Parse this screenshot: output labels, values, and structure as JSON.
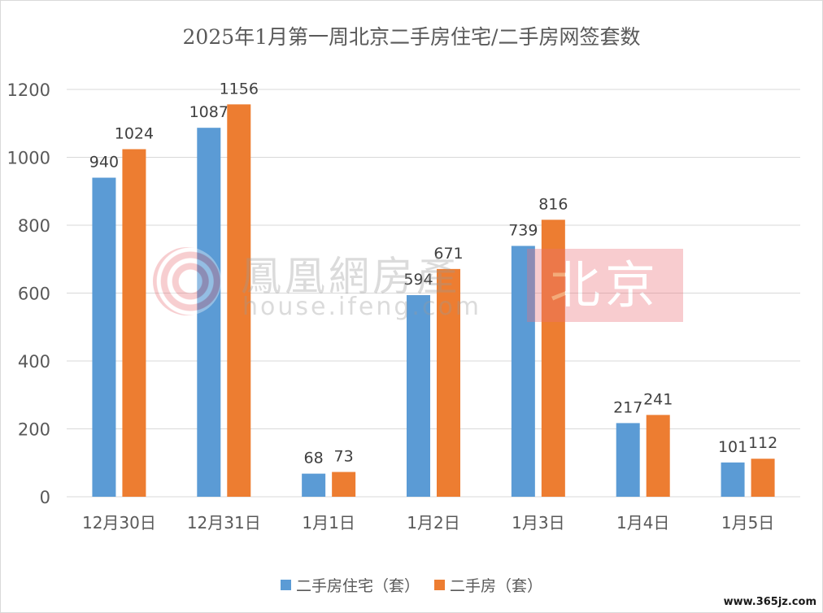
{
  "chart_data": {
    "type": "bar",
    "title": "2025年1月第一周北京二手房住宅/二手房网签套数",
    "categories": [
      "12月30日",
      "12月31日",
      "1月1日",
      "1月2日",
      "1月3日",
      "1月4日",
      "1月5日"
    ],
    "series": [
      {
        "name": "二手房住宅（套）",
        "values": [
          940,
          1087,
          68,
          594,
          739,
          217,
          101
        ],
        "color": "#5b9bd5"
      },
      {
        "name": "二手房（套）",
        "values": [
          1024,
          1156,
          73,
          671,
          816,
          241,
          112
        ],
        "color": "#ed7d31"
      }
    ],
    "ylim": [
      0,
      1200
    ],
    "yticks": [
      0,
      200,
      400,
      600,
      800,
      1000,
      1200
    ],
    "grid": true,
    "legend": "bottom"
  },
  "watermark": {
    "name": "鳳凰網房產",
    "url": "house.ifeng.com",
    "city": "北京"
  },
  "site_mark": "www.365jz.com"
}
